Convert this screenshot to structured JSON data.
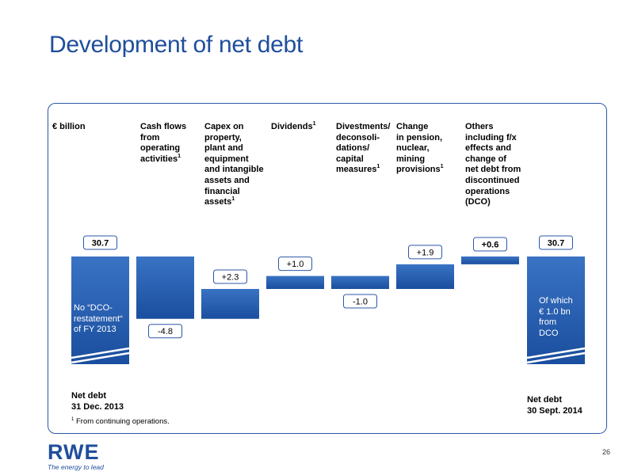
{
  "title": "Development of net debt",
  "unit_label": "€ billion",
  "headers": {
    "cash_flows": [
      "Cash flows",
      "from",
      "operating",
      "activities"
    ],
    "capex": [
      "Capex on",
      "property,",
      "plant and",
      "equipment",
      "and intangible",
      "assets and",
      "financial",
      "assets"
    ],
    "dividends": [
      "Dividends"
    ],
    "divestments": [
      "Divestments/",
      "deconsoli-",
      "dations/",
      "capital",
      "measures"
    ],
    "pension": [
      "Change",
      "in pension,",
      "nuclear,",
      "mining",
      "provisions"
    ],
    "others": [
      "Others",
      "including f/x",
      "effects and",
      "change of",
      "net debt from",
      "discontinued",
      "operations",
      "(DCO)"
    ],
    "footnote_mark": "1"
  },
  "bar_notes": {
    "start": [
      "No “DCO-",
      "restatement“",
      "of FY 2013"
    ],
    "end": [
      "Of which",
      "€ 1.0 bn",
      "from",
      "DCO"
    ]
  },
  "bottom_labels": {
    "start": [
      "Net debt",
      "31 Dec. 2013"
    ],
    "end": [
      "Net debt",
      "30 Sept. 2014"
    ]
  },
  "footnote": "From continuing operations.",
  "logo": {
    "name": "RWE",
    "tagline": "The energy to lead"
  },
  "page_number": "26",
  "colors": {
    "brand": "#1f4e9c",
    "bar_light": "#3a73c4",
    "bar_dark": "#1a4e9e",
    "frame": "#2c57a8"
  },
  "chart_data": {
    "type": "waterfall",
    "unit": "€ billion",
    "start": {
      "value": 30.7,
      "label": "30.7"
    },
    "steps": [
      {
        "value": -4.8,
        "label": "-4.8"
      },
      {
        "value": 2.3,
        "label": "+2.3"
      },
      {
        "value": 1.0,
        "label": "+1.0"
      },
      {
        "value": -1.0,
        "label": "-1.0"
      },
      {
        "value": 1.9,
        "label": "+1.9"
      },
      {
        "value": 0.6,
        "label": "+0.6"
      }
    ],
    "end": {
      "value": 30.7,
      "label": "30.7"
    },
    "axis_break": true,
    "grid": false
  }
}
